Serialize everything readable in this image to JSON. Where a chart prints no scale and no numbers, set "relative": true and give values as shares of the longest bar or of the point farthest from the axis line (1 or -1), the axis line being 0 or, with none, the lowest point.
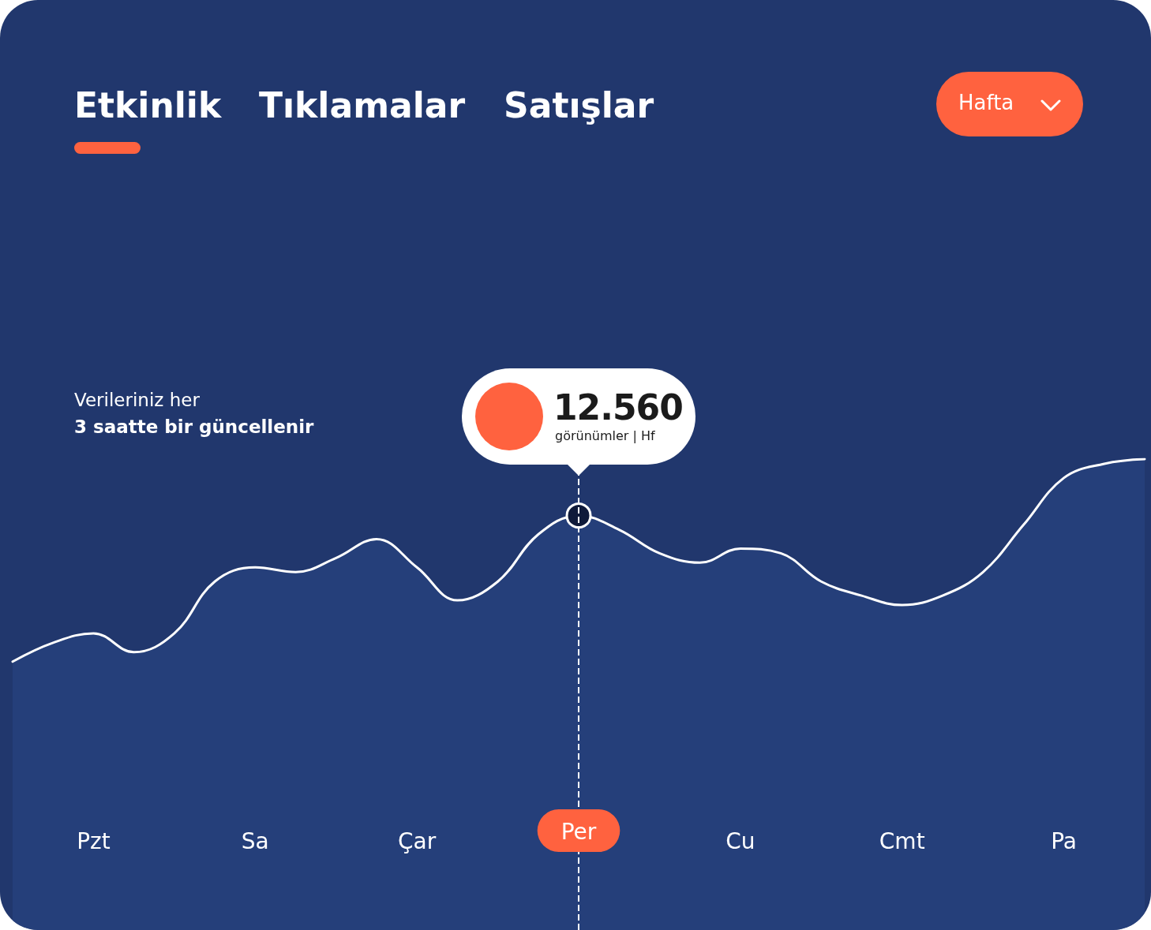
{
  "chart_data": {
    "type": "area",
    "relative": true,
    "categories": [
      null,
      null,
      "Pzt",
      null,
      null,
      null,
      "Sa",
      null,
      null,
      null,
      "Çar",
      null,
      null,
      null,
      "Per",
      null,
      null,
      null,
      "Cu",
      null,
      null,
      null,
      "Cmt",
      null,
      null,
      null,
      "Pa",
      null,
      null
    ],
    "series": [
      {
        "color": "#ffffff",
        "values": [
          0.57,
          0.61,
          0.63,
          0.59,
          0.63,
          0.74,
          0.77,
          0.76,
          0.79,
          0.83,
          0.77,
          0.7,
          0.74,
          0.84,
          0.88,
          0.85,
          0.8,
          0.78,
          0.81,
          0.8,
          0.74,
          0.71,
          0.69,
          0.71,
          0.76,
          0.86,
          0.96,
          0.99,
          1
        ]
      }
    ],
    "ref_lines": [
      {
        "axis": "x",
        "value": "Per",
        "color": "#ffffff",
        "line_style": "dashed"
      }
    ],
    "annotations": [
      "Etkinlik",
      "Tıklamalar",
      "Satışlar",
      "Hafta",
      "Verileriniz her",
      "3 saatte bir güncellenir",
      "12.560",
      "görünümler | Hf"
    ],
    "marker": "none",
    "grid": false
  }
}
